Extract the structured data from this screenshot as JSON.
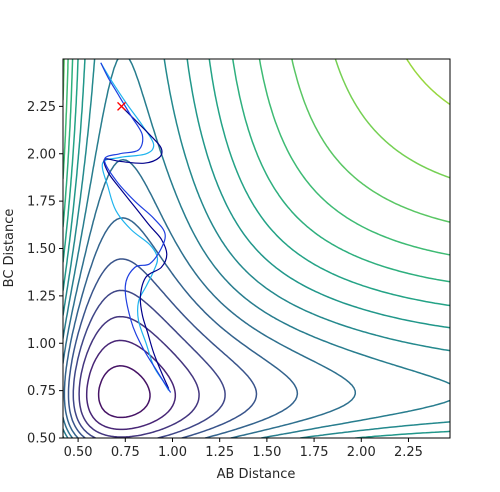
{
  "chart_data": {
    "type": "contour",
    "title": "",
    "xlabel": "AB Distance",
    "ylabel": "BC Distance",
    "xlim": [
      0.42,
      2.47
    ],
    "ylim": [
      0.5,
      2.5
    ],
    "x_ticks": [
      "0.50",
      "0.75",
      "1.00",
      "1.25",
      "1.50",
      "1.75",
      "2.00",
      "2.25"
    ],
    "y_ticks": [
      "0.50",
      "0.75",
      "1.00",
      "1.25",
      "1.50",
      "1.75",
      "2.00",
      "2.25"
    ],
    "x_tick_values": [
      0.5,
      0.75,
      1.0,
      1.25,
      1.5,
      1.75,
      2.0,
      2.25
    ],
    "y_tick_values": [
      0.5,
      0.75,
      1.0,
      1.25,
      1.5,
      1.75,
      2.0,
      2.25
    ],
    "colormap": "viridis",
    "contour_levels": 20,
    "start_marker": {
      "x": 0.73,
      "y": 2.25,
      "symbol": "x",
      "color": "#ff0000"
    },
    "trajectories": [
      {
        "color": "#1fb4ee",
        "points": [
          [
            0.62,
            2.48
          ],
          [
            0.68,
            2.38
          ],
          [
            0.76,
            2.26
          ],
          [
            0.84,
            2.15
          ],
          [
            0.9,
            2.05
          ],
          [
            0.86,
            2.0
          ],
          [
            0.72,
            1.98
          ],
          [
            0.63,
            1.95
          ],
          [
            0.66,
            1.82
          ],
          [
            0.7,
            1.7
          ],
          [
            0.78,
            1.6
          ],
          [
            0.88,
            1.52
          ],
          [
            0.92,
            1.45
          ],
          [
            0.9,
            1.38
          ],
          [
            0.86,
            1.3
          ],
          [
            0.82,
            1.22
          ],
          [
            0.82,
            1.12
          ],
          [
            0.86,
            1.0
          ],
          [
            0.9,
            0.88
          ],
          [
            0.95,
            0.8
          ],
          [
            0.98,
            0.75
          ]
        ]
      },
      {
        "color": "#00008b",
        "points": [
          [
            0.73,
            2.25
          ],
          [
            0.8,
            2.18
          ],
          [
            0.88,
            2.1
          ],
          [
            0.94,
            2.03
          ],
          [
            0.93,
            1.98
          ],
          [
            0.85,
            1.95
          ],
          [
            0.72,
            1.96
          ],
          [
            0.64,
            1.97
          ],
          [
            0.66,
            1.9
          ],
          [
            0.72,
            1.82
          ],
          [
            0.8,
            1.72
          ],
          [
            0.88,
            1.62
          ],
          [
            0.94,
            1.55
          ],
          [
            0.97,
            1.47
          ],
          [
            0.94,
            1.4
          ],
          [
            0.86,
            1.35
          ],
          [
            0.83,
            1.25
          ],
          [
            0.84,
            1.15
          ],
          [
            0.87,
            1.05
          ],
          [
            0.9,
            0.95
          ],
          [
            0.94,
            0.85
          ],
          [
            0.98,
            0.76
          ]
        ]
      },
      {
        "color": "#1f3fe0",
        "points": [
          [
            0.99,
            0.74
          ],
          [
            0.92,
            0.85
          ],
          [
            0.84,
            0.98
          ],
          [
            0.78,
            1.12
          ],
          [
            0.75,
            1.3
          ],
          [
            0.8,
            1.4
          ],
          [
            0.88,
            1.42
          ],
          [
            0.94,
            1.5
          ],
          [
            0.96,
            1.58
          ],
          [
            0.9,
            1.66
          ],
          [
            0.8,
            1.75
          ],
          [
            0.7,
            1.86
          ],
          [
            0.64,
            1.97
          ],
          [
            0.72,
            2.0
          ],
          [
            0.82,
            2.02
          ],
          [
            0.84,
            2.1
          ],
          [
            0.78,
            2.2
          ],
          [
            0.72,
            2.3
          ],
          [
            0.66,
            2.4
          ],
          [
            0.62,
            2.48
          ]
        ]
      }
    ]
  }
}
